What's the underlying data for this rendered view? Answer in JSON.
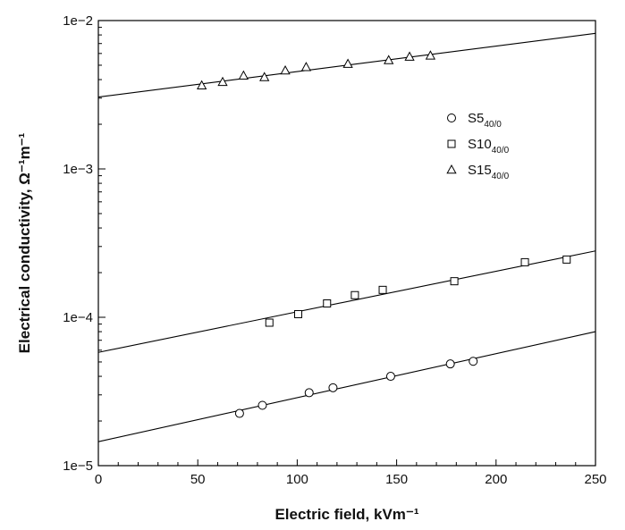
{
  "chart_data": {
    "type": "scatter",
    "xlabel": "Electric field, kVm⁻¹",
    "ylabel": "Electrical conductivity, Ω⁻¹m⁻¹",
    "xlim": [
      0,
      250
    ],
    "ylim": [
      1e-05,
      0.01
    ],
    "y_scale": "log",
    "x_ticks": [
      0,
      50,
      100,
      150,
      200,
      250
    ],
    "x_tick_labels": [
      "0",
      "50",
      "100",
      "150",
      "200",
      "250"
    ],
    "y_ticks": [
      1e-05,
      0.0001,
      0.001,
      0.01
    ],
    "y_tick_labels": [
      "1e−5",
      "1e−4",
      "1e−3",
      "1e−2"
    ],
    "grid": false,
    "legend_position": "upper-right",
    "series": [
      {
        "name": "S5",
        "name_sub": "40/0",
        "marker": "circle",
        "points": [
          [
            71,
            2.25e-05
          ],
          [
            82.5,
            2.55e-05
          ],
          [
            106,
            3.1e-05
          ],
          [
            118,
            3.35e-05
          ],
          [
            147,
            4e-05
          ],
          [
            177,
            4.85e-05
          ],
          [
            188.5,
            5.05e-05
          ]
        ],
        "fit": [
          [
            0,
            1.45e-05
          ],
          [
            250,
            8e-05
          ]
        ]
      },
      {
        "name": "S10",
        "name_sub": "40/0",
        "marker": "square",
        "points": [
          [
            86,
            9.2e-05
          ],
          [
            100.5,
            0.000105
          ],
          [
            115,
            0.000124
          ],
          [
            129,
            0.000141
          ],
          [
            143,
            0.000153
          ],
          [
            179,
            0.000175
          ],
          [
            214.5,
            0.000235
          ],
          [
            235.5,
            0.000245
          ]
        ],
        "fit": [
          [
            0,
            5.8e-05
          ],
          [
            250,
            0.00028
          ]
        ]
      },
      {
        "name": "S15",
        "name_sub": "40/0",
        "marker": "triangle",
        "points": [
          [
            52,
            0.00365
          ],
          [
            62.5,
            0.00385
          ],
          [
            73,
            0.00425
          ],
          [
            83.5,
            0.00415
          ],
          [
            94,
            0.0046
          ],
          [
            104.5,
            0.00485
          ],
          [
            125.5,
            0.0051
          ],
          [
            146,
            0.0054
          ],
          [
            156.5,
            0.0057
          ],
          [
            167,
            0.0058
          ]
        ],
        "fit": [
          [
            0,
            0.00305
          ],
          [
            250,
            0.0082
          ]
        ]
      }
    ]
  }
}
